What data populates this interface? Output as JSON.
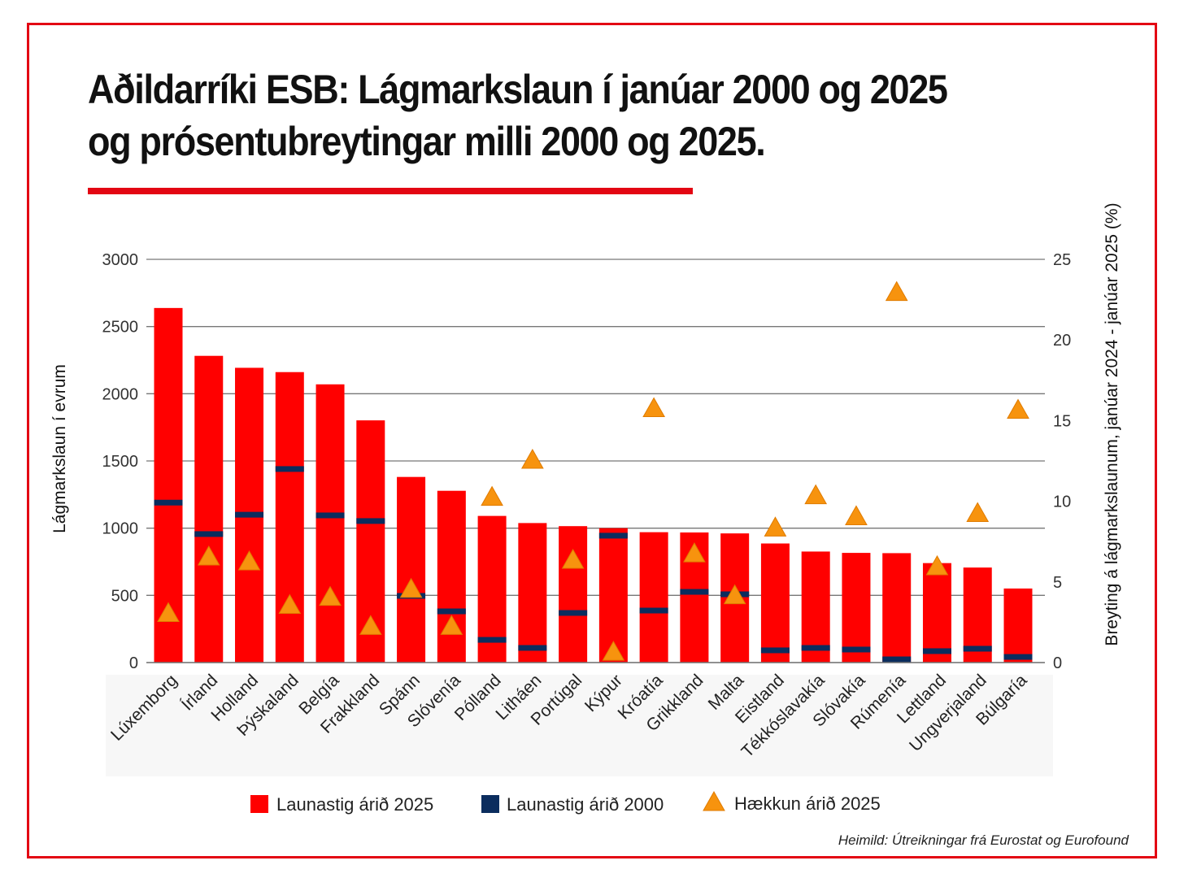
{
  "title_lines": [
    "Aðildarríki ESB: Lágmarkslaun í janúar 2000 og 2025",
    "og prósentubreytingar milli 2000 og 2025."
  ],
  "source": "Heimild: Útreikningar frá Eurostat og Eurofound",
  "colors": {
    "frame": "#e30613",
    "bar_2025": "#ff0000",
    "marker_2000": "#0b2d5e",
    "triangle": "#f7930e",
    "grid": "#777777"
  },
  "chart_data": {
    "type": "bar",
    "ylabel": "Lágmarkslaun í evrum",
    "y2label": "Breyting á lágmarkslaunum, janúar 2024 - janúar 2025 (%)",
    "ylim": [
      0,
      3000
    ],
    "y2lim": [
      0,
      25
    ],
    "yticks": [
      0,
      500,
      1000,
      1500,
      2000,
      2500,
      3000
    ],
    "y2ticks": [
      0,
      5,
      10,
      15,
      20,
      25
    ],
    "grid": true,
    "legend_placement": "bottom",
    "categories": [
      "Lúxemborg",
      "Írland",
      "Holland",
      "Þýskaland",
      "Belgía",
      "Frakkland",
      "Spánn",
      "Slóvenía",
      "Pólland",
      "Litháen",
      "Portúgal",
      "Kýpur",
      "Króatía",
      "Grikkland",
      "Malta",
      "Eistland",
      "Tékkóslavakía",
      "Slóvakía",
      "Rúmenía",
      "Lettland",
      "Ungverjaland",
      "Búlgaría"
    ],
    "series": [
      {
        "name": "Launastig árið 2025",
        "type": "bar",
        "axis": "left",
        "values": [
          2638,
          2282,
          2193,
          2161,
          2070,
          1802,
          1381,
          1278,
          1091,
          1038,
          1015,
          1000,
          970,
          968,
          961,
          886,
          826,
          816,
          814,
          740,
          707,
          551
        ]
      },
      {
        "name": "Launastig árið 2000",
        "type": "marker",
        "axis": "left",
        "values": [
          1190,
          956,
          1100,
          1440,
          1095,
          1053,
          496,
          381,
          169,
          109,
          369,
          944,
          387,
          526,
          508,
          91,
          109,
          97,
          24,
          85,
          103,
          42
        ]
      },
      {
        "name": "Hækkun árið 2025",
        "type": "triangle",
        "axis": "right",
        "values": [
          3.0,
          6.5,
          6.2,
          3.5,
          4.0,
          2.2,
          4.5,
          2.2,
          10.2,
          12.5,
          6.3,
          0.6,
          15.7,
          6.7,
          4.1,
          8.3,
          10.3,
          9.0,
          22.9,
          5.9,
          9.2,
          15.6
        ]
      }
    ]
  }
}
